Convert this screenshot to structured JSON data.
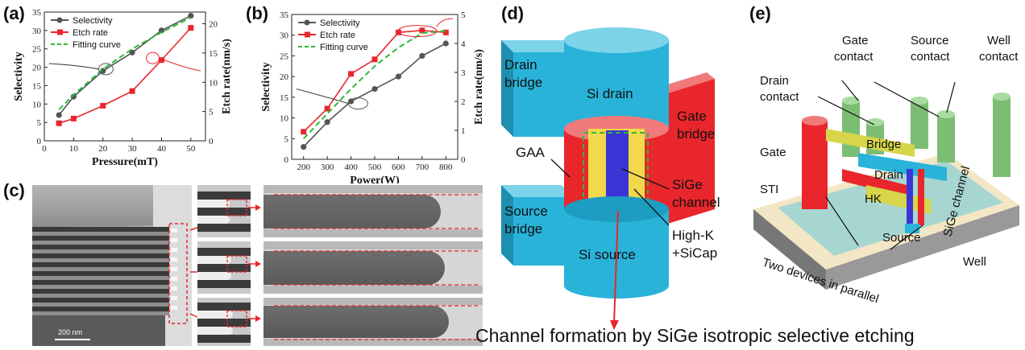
{
  "panels": {
    "a": "(a)",
    "b": "(b)",
    "c": "(c)",
    "d": "(d)",
    "e": "(e)"
  },
  "chart_data": [
    {
      "type": "line",
      "panel": "a",
      "xlabel": "Pressure(mT)",
      "ylabel": "Selectivity",
      "y2label": "Etch rate(nm/s)",
      "x": [
        5,
        10,
        20,
        30,
        40,
        50
      ],
      "xlim": [
        0,
        55
      ],
      "xticks": [
        0,
        10,
        20,
        30,
        40,
        50
      ],
      "ylim": [
        0,
        35
      ],
      "yticks": [
        0,
        5,
        10,
        15,
        20,
        25,
        30,
        35
      ],
      "y2lim": [
        0,
        22
      ],
      "y2ticks": [
        0,
        5,
        10,
        15,
        20
      ],
      "series": [
        {
          "name": "Selectivity",
          "axis": "left",
          "color": "#555555",
          "values": [
            7,
            12,
            19,
            24,
            30,
            34
          ]
        },
        {
          "name": "Etch rate",
          "axis": "right",
          "color": "#e8262c",
          "values": [
            3,
            3.8,
            6,
            8.5,
            13.8,
            19.3
          ]
        },
        {
          "name": "Fitting curve",
          "axis": "left",
          "color": "#2dbb3a",
          "dashed": true,
          "values": [
            8.5,
            12.5,
            19.5,
            25,
            29.5,
            33.5
          ]
        }
      ]
    },
    {
      "type": "line",
      "panel": "b",
      "xlabel": "Power(W)",
      "ylabel": "Selectivity",
      "y2label": "Etch rate(nm/s)",
      "x": [
        200,
        300,
        400,
        500,
        600,
        700,
        800
      ],
      "xlim": [
        150,
        850
      ],
      "xticks": [
        200,
        300,
        400,
        500,
        600,
        700,
        800
      ],
      "ylim": [
        0,
        35
      ],
      "yticks": [
        0,
        5,
        10,
        15,
        20,
        25,
        30,
        35
      ],
      "y2lim": [
        0,
        5
      ],
      "y2ticks": [
        0,
        1,
        2,
        3,
        4,
        5
      ],
      "series": [
        {
          "name": "Selectivity",
          "axis": "left",
          "color": "#555555",
          "values": [
            3,
            9,
            14,
            17,
            20,
            25,
            28
          ]
        },
        {
          "name": "Etch rate",
          "axis": "right",
          "color": "#e8262c",
          "values": [
            0.95,
            1.75,
            2.95,
            3.45,
            4.38,
            4.45,
            4.38
          ]
        },
        {
          "name": "Fitting curve",
          "axis": "left",
          "color": "#2dbb3a",
          "dashed": true,
          "values": [
            5,
            11,
            17,
            22.5,
            27,
            30.5,
            31
          ]
        }
      ]
    }
  ],
  "panel_c": {
    "scalebar": "200 nm"
  },
  "panel_d": {
    "labels": {
      "drain_bridge_1": "Drain",
      "drain_bridge_2": "bridge",
      "si_drain": "Si drain",
      "gate_bridge_1": "Gate",
      "gate_bridge_2": "bridge",
      "gaa": "GAA",
      "sige_channel_1": "SiGe",
      "sige_channel_2": "channel",
      "source_bridge_1": "Source",
      "source_bridge_2": "bridge",
      "si_source": "Si source",
      "highk_1": "High-K",
      "highk_2": "+SiCap"
    },
    "colors": {
      "cyan": "#29b3d9",
      "red": "#e8262c",
      "blue": "#3b35d6",
      "yellow": "#f2d84b"
    }
  },
  "panel_e": {
    "labels": {
      "gate_contact_1": "Gate",
      "gate_contact_2": "contact",
      "source_contact_1": "Source",
      "source_contact_2": "contact",
      "well_contact_1": "Well",
      "well_contact_2": "contact",
      "drain_contact_1": "Drain",
      "drain_contact_2": "contact",
      "bridge": "Bridge",
      "gate": "Gate",
      "drain": "Drain",
      "sti": "STI",
      "hk": "HK",
      "source": "Source",
      "sige_channel": "SiGe channel",
      "two_devices": "Two  devices in parallel",
      "well": "Well"
    }
  },
  "caption": "Channel formation by SiGe isotropic selective etching"
}
